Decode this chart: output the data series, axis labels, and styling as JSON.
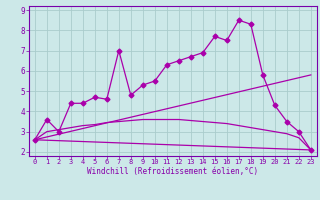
{
  "background_color": "#cce8e8",
  "grid_color": "#aacccc",
  "line_color": "#aa00aa",
  "xlabel": "Windchill (Refroidissement éolien,°C)",
  "xlabel_color": "#8800aa",
  "xlim": [
    -0.5,
    23.5
  ],
  "ylim": [
    1.8,
    9.2
  ],
  "xticks": [
    0,
    1,
    2,
    3,
    4,
    5,
    6,
    7,
    8,
    9,
    10,
    11,
    12,
    13,
    14,
    15,
    16,
    17,
    18,
    19,
    20,
    21,
    22,
    23
  ],
  "yticks": [
    2,
    3,
    4,
    5,
    6,
    7,
    8,
    9
  ],
  "line1_x": [
    0,
    1,
    2,
    3,
    4,
    5,
    6,
    7,
    8,
    9,
    10,
    11,
    12,
    13,
    14,
    15,
    16,
    17,
    18,
    19,
    20,
    21,
    22,
    23
  ],
  "line1_y": [
    2.6,
    3.6,
    3.0,
    4.4,
    4.4,
    4.7,
    4.6,
    7.0,
    4.8,
    5.3,
    5.5,
    6.3,
    6.5,
    6.7,
    6.9,
    7.7,
    7.5,
    8.5,
    8.3,
    5.8,
    4.3,
    3.5,
    3.0,
    2.1
  ],
  "line2_x": [
    0,
    1,
    2,
    3,
    4,
    5,
    6,
    7,
    8,
    9,
    10,
    11,
    12,
    13,
    14,
    15,
    16,
    17,
    18,
    19,
    20,
    21,
    22,
    23
  ],
  "line2_y": [
    2.6,
    3.0,
    3.1,
    3.2,
    3.3,
    3.35,
    3.45,
    3.5,
    3.55,
    3.6,
    3.6,
    3.6,
    3.6,
    3.55,
    3.5,
    3.45,
    3.4,
    3.3,
    3.2,
    3.1,
    3.0,
    2.9,
    2.7,
    2.1
  ],
  "line3_x": [
    0,
    23
  ],
  "line3_y": [
    2.6,
    2.1
  ],
  "line4_x": [
    0,
    23
  ],
  "line4_y": [
    2.6,
    5.8
  ],
  "marker_style": "D",
  "marker_size": 2.5,
  "line_width": 0.9,
  "tick_fontsize": 5.0,
  "xlabel_fontsize": 5.5
}
